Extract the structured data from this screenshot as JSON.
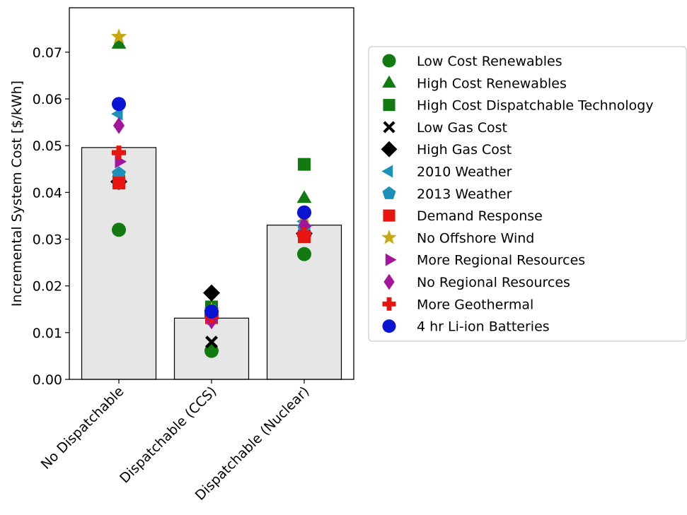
{
  "chart_data": {
    "type": "bar",
    "categories": [
      "No Dispatchable",
      "Dispatchable (CCS)",
      "Dispatchable (Nuclear)"
    ],
    "values": [
      0.0496,
      0.0131,
      0.033
    ],
    "ylabel": "Incremental System Cost [$/kWh]",
    "xlabel": "",
    "ylim": [
      0,
      0.0795
    ],
    "yticks": [
      "0.00",
      "0.01",
      "0.02",
      "0.03",
      "0.04",
      "0.05",
      "0.06",
      "0.07"
    ],
    "bar_color": "#e6e6e6",
    "grid": false,
    "legend_position": "right",
    "series": [
      {
        "name": "Low Cost Renewables",
        "marker": "circle",
        "color": "#117a11",
        "values": [
          0.032,
          0.0061,
          0.0268
        ]
      },
      {
        "name": "High Cost Renewables",
        "marker": "triangle-up",
        "color": "#117a11",
        "values": [
          0.0718,
          0.0155,
          0.0388
        ]
      },
      {
        "name": "High Cost Dispatchable Technology",
        "marker": "square",
        "color": "#117a11",
        "values": [
          0.0423,
          0.0155,
          0.046
        ]
      },
      {
        "name": "Low Gas Cost",
        "marker": "x",
        "color": "#000000",
        "values": [
          0.0422,
          0.008,
          0.031
        ]
      },
      {
        "name": "High Gas Cost",
        "marker": "diamond",
        "color": "#000000",
        "values": [
          0.0423,
          0.0185,
          0.0312
        ]
      },
      {
        "name": "2010 Weather",
        "marker": "triangle-left",
        "color": "#1b90b8",
        "values": [
          0.0568,
          0.0148,
          0.0338
        ]
      },
      {
        "name": "2013 Weather",
        "marker": "pentagon",
        "color": "#1b90b8",
        "values": [
          0.044,
          0.014,
          0.0325
        ]
      },
      {
        "name": "Demand Response",
        "marker": "square",
        "color": "#e8140f",
        "values": [
          0.042,
          0.0132,
          0.0305
        ]
      },
      {
        "name": "No Offshore Wind",
        "marker": "star",
        "color": "#c8a812",
        "values": [
          0.0733,
          0.0148,
          0.035
        ]
      },
      {
        "name": "More Regional Resources",
        "marker": "triangle-right",
        "color": "#a1169a",
        "values": [
          0.0466,
          0.013,
          0.0328
        ]
      },
      {
        "name": "No Regional Resources",
        "marker": "thin-diamond",
        "color": "#a1169a",
        "values": [
          0.0543,
          0.0125,
          0.033
        ]
      },
      {
        "name": "More Geothermal",
        "marker": "plus",
        "color": "#e8140f",
        "values": [
          0.0485,
          0.0135,
          0.031
        ]
      },
      {
        "name": "4 hr Li-ion Batteries",
        "marker": "circle",
        "color": "#0a14d2",
        "values": [
          0.0589,
          0.0145,
          0.0357
        ]
      }
    ]
  }
}
